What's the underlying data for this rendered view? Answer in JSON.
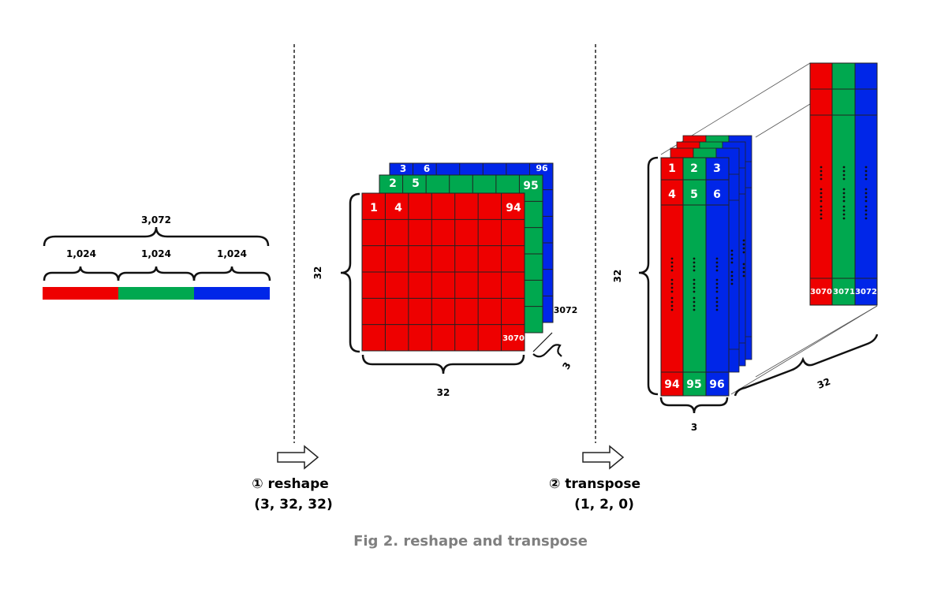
{
  "colors": {
    "red": "#ee0000",
    "green": "#00a84f",
    "blue": "#0026e8",
    "line": "#222222"
  },
  "flat": {
    "total_label": "3,072",
    "segment_labels": [
      "1,024",
      "1,024",
      "1,024"
    ]
  },
  "step1": {
    "label": "① reshape",
    "shape": "(3, 32, 32)"
  },
  "step2": {
    "label": "② transpose",
    "shape": "(1, 2, 0)"
  },
  "grid": {
    "red_labels": {
      "first": "1",
      "second": "4",
      "last_top": "94",
      "last": "3070"
    },
    "green_labels": {
      "first": "2",
      "second": "5",
      "last_top": "95"
    },
    "blue_labels": {
      "first": "3",
      "second": "6",
      "last_top": "96"
    },
    "dim_left": "32",
    "dim_bottom": "32",
    "dim_depth": "3",
    "last_index": "3072"
  },
  "transposed": {
    "row1": [
      "1",
      "2",
      "3"
    ],
    "row2": [
      "4",
      "5",
      "6"
    ],
    "last_row": [
      "94",
      "95",
      "96"
    ],
    "dim_left": "32",
    "dim_bottom": "3",
    "dim_depth": "32",
    "back_bottom": [
      "3070",
      "3071",
      "3072"
    ]
  },
  "caption": "Fig 2. reshape and transpose"
}
